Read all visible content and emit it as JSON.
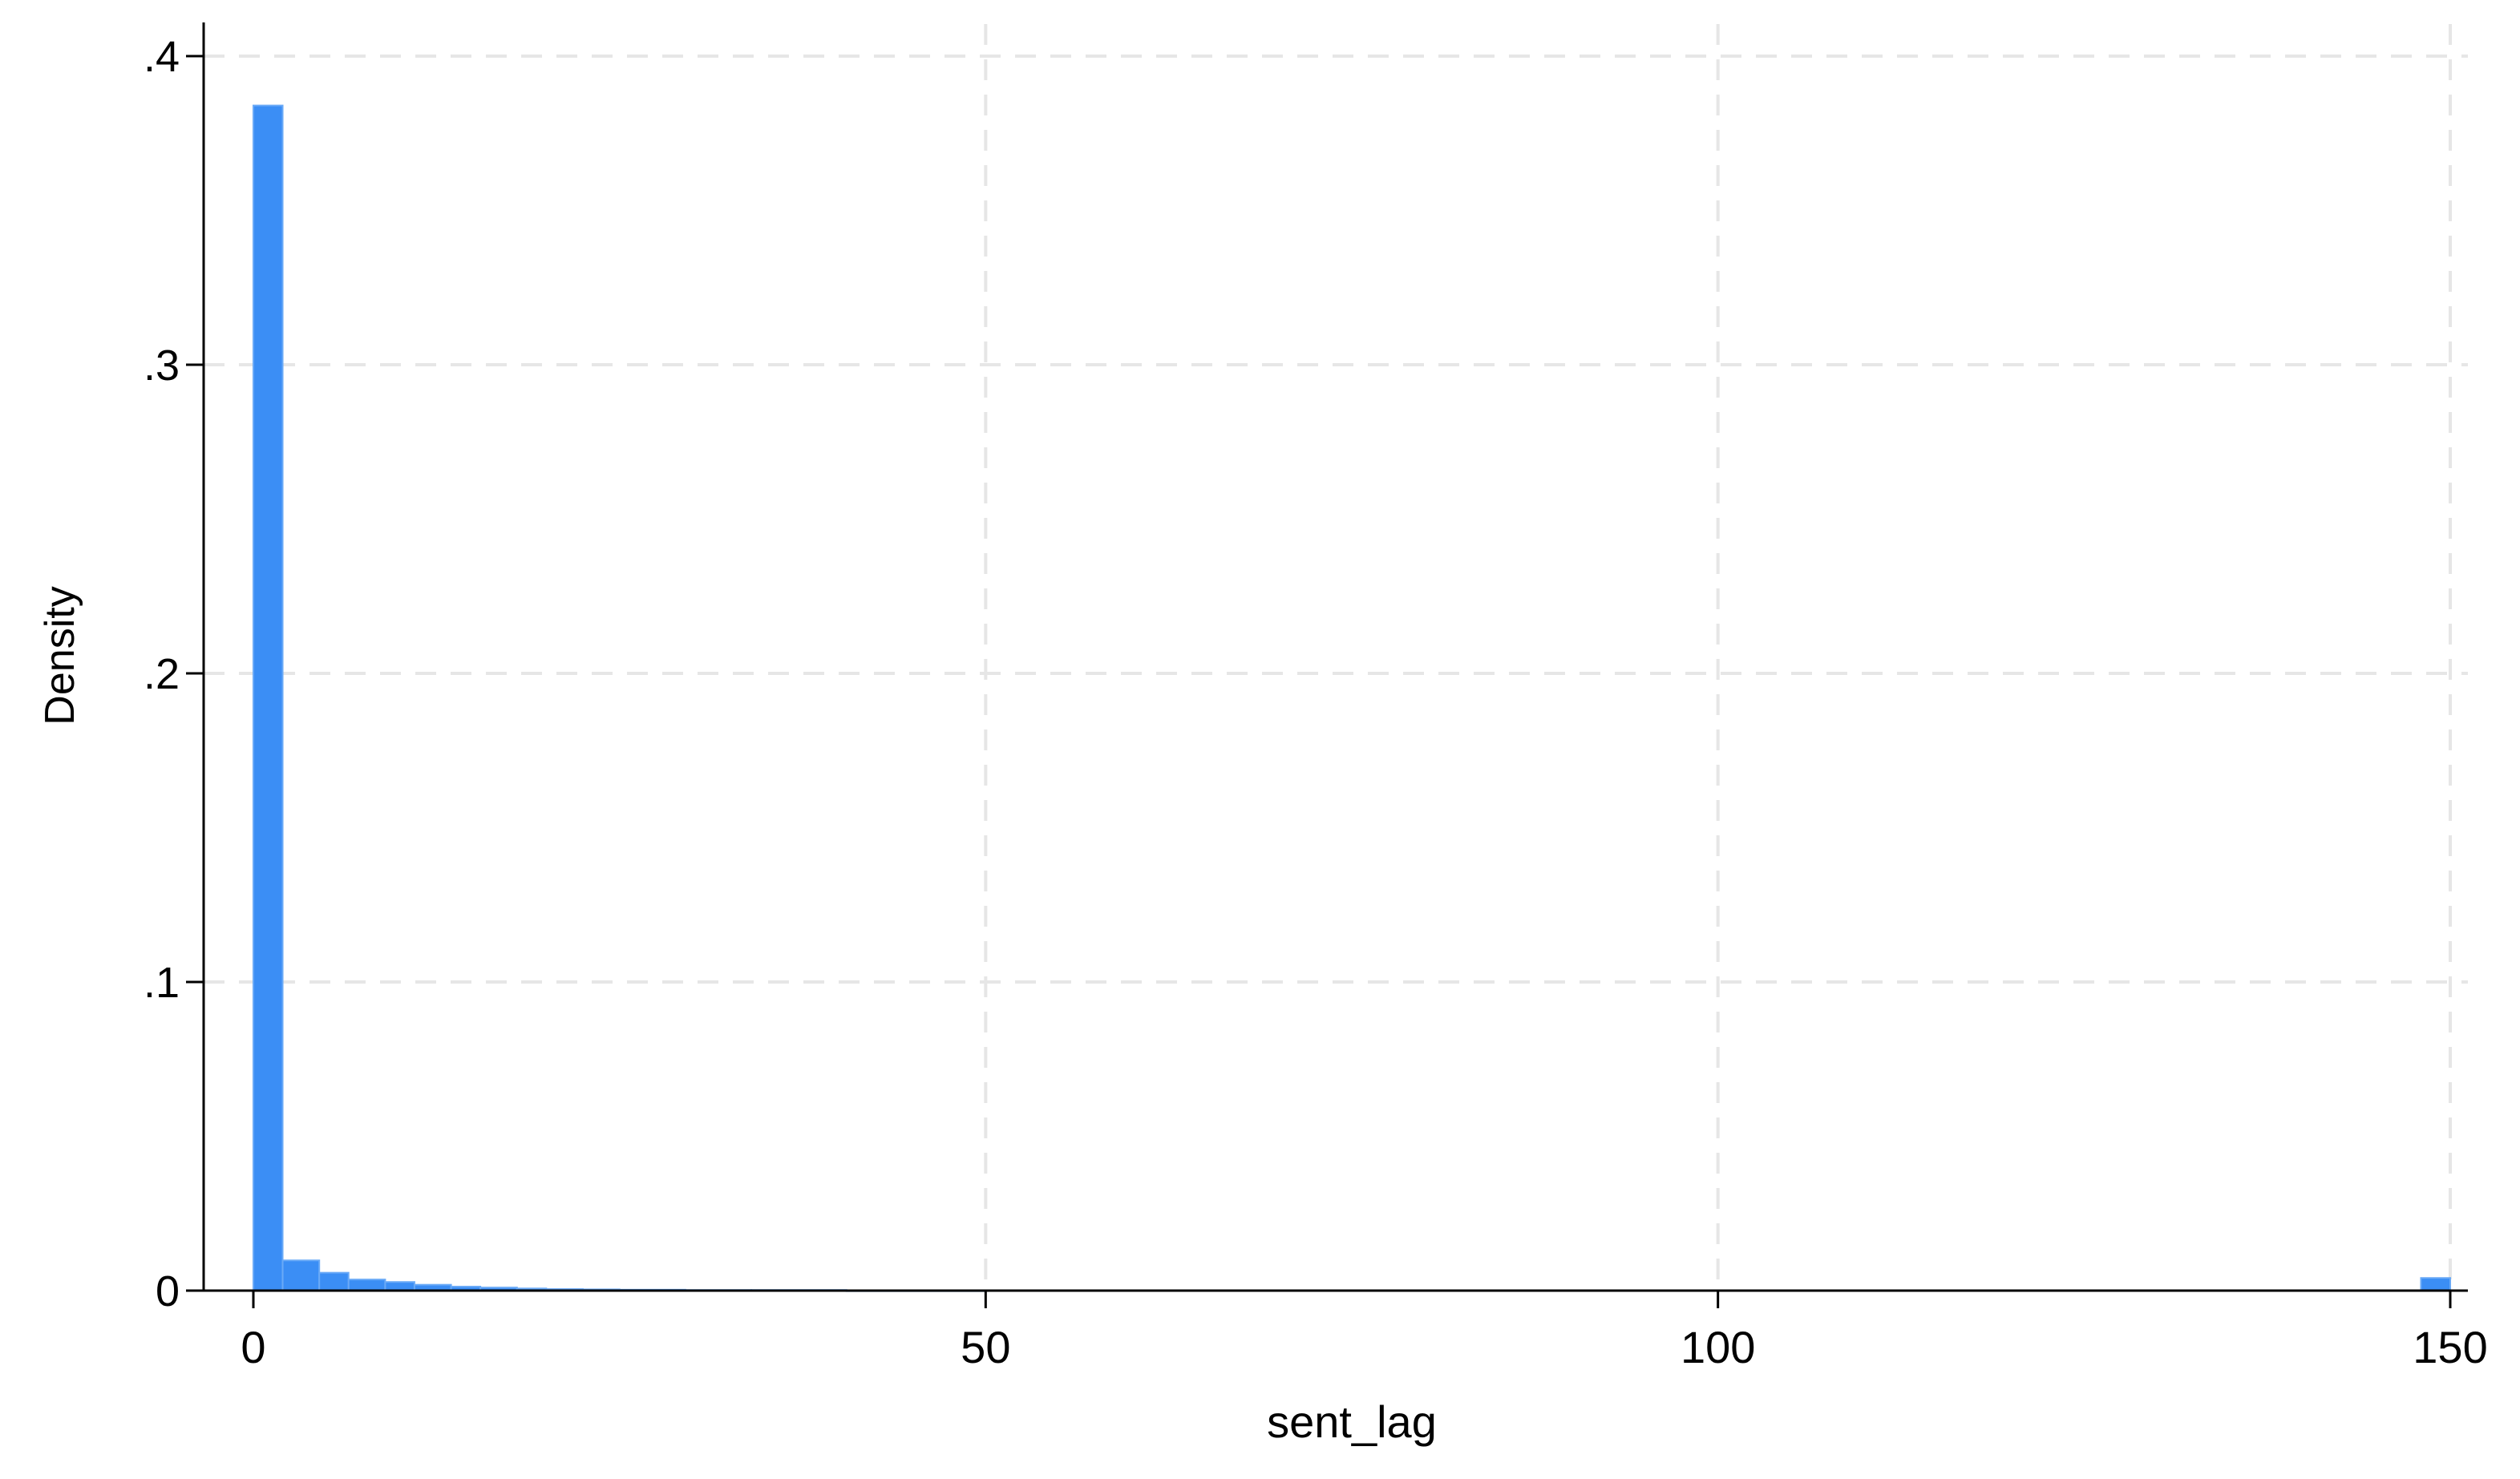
{
  "chart_data": {
    "type": "bar",
    "subtype": "histogram",
    "xlabel": "sent_lag",
    "ylabel": "Density",
    "xlim": [
      -2,
      151
    ],
    "ylim": [
      0,
      0.4
    ],
    "xticks": [
      {
        "value": 0,
        "label": "0"
      },
      {
        "value": 50,
        "label": "50"
      },
      {
        "value": 100,
        "label": "100"
      },
      {
        "value": 150,
        "label": "150"
      }
    ],
    "yticks": [
      {
        "value": 0,
        "label": "0"
      },
      {
        "value": 0.1,
        "label": ".1"
      },
      {
        "value": 0.2,
        "label": ".2"
      },
      {
        "value": 0.3,
        "label": ".3"
      },
      {
        "value": 0.4,
        "label": ".4"
      }
    ],
    "grid": true,
    "legend": "none",
    "bar_color": "#3b8ef5",
    "bar_edge_color": "#6aaaf7",
    "bins": [
      {
        "x0": 0,
        "x1": 2,
        "density": 0.384
      },
      {
        "x0": 2,
        "x1": 4.5,
        "density": 0.0098
      },
      {
        "x0": 4.5,
        "x1": 6.5,
        "density": 0.0058
      },
      {
        "x0": 6.5,
        "x1": 9,
        "density": 0.0036
      },
      {
        "x0": 9,
        "x1": 11,
        "density": 0.0028
      },
      {
        "x0": 11,
        "x1": 13.5,
        "density": 0.0019
      },
      {
        "x0": 13.5,
        "x1": 15.5,
        "density": 0.0013
      },
      {
        "x0": 15.5,
        "x1": 18,
        "density": 0.001
      },
      {
        "x0": 18,
        "x1": 20,
        "density": 0.0007
      },
      {
        "x0": 20,
        "x1": 22.5,
        "density": 0.0005
      },
      {
        "x0": 22.5,
        "x1": 25,
        "density": 0.0004
      },
      {
        "x0": 25,
        "x1": 29.5,
        "density": 0.0003
      },
      {
        "x0": 29.5,
        "x1": 34,
        "density": 0.0002
      },
      {
        "x0": 34,
        "x1": 40.5,
        "density": 0.0002
      },
      {
        "x0": 40.5,
        "x1": 50,
        "density": 0.0001
      },
      {
        "x0": 148,
        "x1": 150,
        "density": 0.0041
      }
    ]
  }
}
